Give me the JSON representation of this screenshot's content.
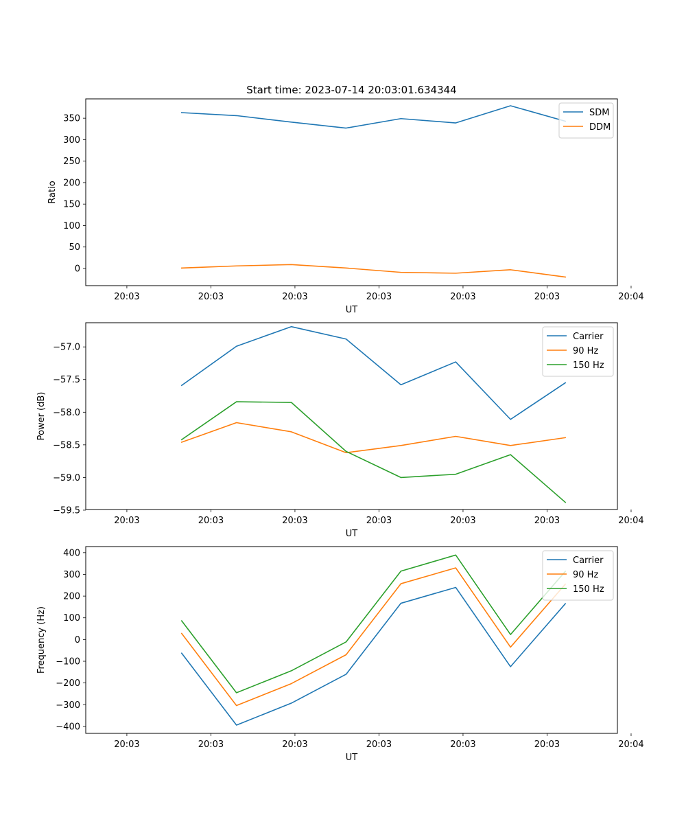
{
  "figure": {
    "title": "Start time: 2023-07-14 20:03:01.634344"
  },
  "colors": {
    "blue": "#1f77b4",
    "orange": "#ff7f0e",
    "green": "#2ca02c"
  },
  "chart_data": [
    {
      "type": "line",
      "title": "Start time: 2023-07-14 20:03:01.634344",
      "xlabel": "UT",
      "ylabel": "Ratio",
      "x": [
        1,
        2,
        3,
        4,
        5,
        6,
        7,
        8
      ],
      "xlim": [
        -0.75,
        8.95
      ],
      "xticks": [
        0,
        1.5333,
        3.0667,
        4.6,
        6.1333,
        7.6667,
        9.2
      ],
      "xtick_labels": [
        "20:03",
        "20:03",
        "20:03",
        "20:03",
        "20:03",
        "20:03",
        "20:04"
      ],
      "ylim": [
        -40,
        395
      ],
      "yticks": [
        0,
        50,
        100,
        150,
        200,
        250,
        300,
        350
      ],
      "ytick_labels": [
        "0",
        "50",
        "100",
        "150",
        "200",
        "250",
        "300",
        "350"
      ],
      "legend": "top-right",
      "series": [
        {
          "name": "SDM",
          "color": "#1f77b4",
          "values": [
            363,
            356,
            341,
            327,
            349,
            339,
            379,
            343
          ]
        },
        {
          "name": "DDM",
          "color": "#ff7f0e",
          "values": [
            1,
            6,
            9,
            1,
            -9,
            -11,
            -3,
            -20
          ]
        }
      ]
    },
    {
      "type": "line",
      "title": "",
      "xlabel": "UT",
      "ylabel": "Power (dB)",
      "x": [
        1,
        2,
        3,
        4,
        5,
        6,
        7,
        8
      ],
      "xlim": [
        -0.75,
        8.95
      ],
      "xticks": [
        0,
        1.5333,
        3.0667,
        4.6,
        6.1333,
        7.6667,
        9.2
      ],
      "xtick_labels": [
        "20:03",
        "20:03",
        "20:03",
        "20:03",
        "20:03",
        "20:03",
        "20:04"
      ],
      "ylim": [
        -59.49,
        -56.63
      ],
      "yticks": [
        -59.5,
        -59.0,
        -58.5,
        -58.0,
        -57.5,
        -57.0
      ],
      "ytick_labels": [
        "−59.5",
        "−59.0",
        "−58.5",
        "−58.0",
        "−57.5",
        "−57.0"
      ],
      "legend": "top-right",
      "series": [
        {
          "name": "Carrier",
          "color": "#1f77b4",
          "values": [
            -57.59,
            -56.99,
            -56.69,
            -56.88,
            -57.58,
            -57.23,
            -58.11,
            -57.55
          ]
        },
        {
          "name": "90 Hz",
          "color": "#ff7f0e",
          "values": [
            -58.46,
            -58.16,
            -58.3,
            -58.62,
            -58.51,
            -58.37,
            -58.51,
            -58.39
          ]
        },
        {
          "name": "150 Hz",
          "color": "#2ca02c",
          "values": [
            -58.42,
            -57.84,
            -57.85,
            -58.6,
            -59.0,
            -58.95,
            -58.65,
            -59.38
          ]
        }
      ]
    },
    {
      "type": "line",
      "title": "",
      "xlabel": "UT",
      "ylabel": "Frequency (Hz)",
      "x": [
        1,
        2,
        3,
        4,
        5,
        6,
        7,
        8
      ],
      "xlim": [
        -0.75,
        8.95
      ],
      "xticks": [
        0,
        1.5333,
        3.0667,
        4.6,
        6.1333,
        7.6667,
        9.2
      ],
      "xtick_labels": [
        "20:03",
        "20:03",
        "20:03",
        "20:03",
        "20:03",
        "20:03",
        "20:04"
      ],
      "ylim": [
        -432,
        428
      ],
      "yticks": [
        -400,
        -300,
        -200,
        -100,
        0,
        100,
        200,
        300,
        400
      ],
      "ytick_labels": [
        "−400",
        "−300",
        "−200",
        "−100",
        "0",
        "100",
        "200",
        "300",
        "400"
      ],
      "legend": "top-right",
      "series": [
        {
          "name": "Carrier",
          "color": "#1f77b4",
          "values": [
            -63,
            -394,
            -293,
            -160,
            167,
            240,
            -125,
            165
          ]
        },
        {
          "name": "90 Hz",
          "color": "#ff7f0e",
          "values": [
            28,
            -304,
            -203,
            -70,
            257,
            330,
            -35,
            255
          ]
        },
        {
          "name": "150 Hz",
          "color": "#2ca02c",
          "values": [
            86,
            -245,
            -144,
            -11,
            315,
            389,
            23,
            314
          ]
        }
      ]
    }
  ]
}
